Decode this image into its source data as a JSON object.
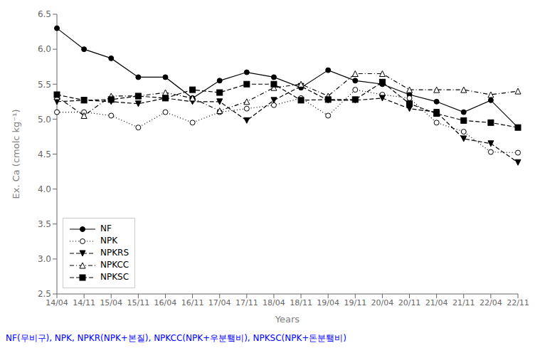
{
  "chart_data": {
    "type": "line",
    "xlabel": "Years",
    "ylabel": "Ex. Ca (cmolc kg⁻¹)",
    "categories": [
      "14/04",
      "14/11",
      "15/04",
      "15/11",
      "16/04",
      "16/11",
      "17/04",
      "17/11",
      "18/04",
      "18/11",
      "19/04",
      "19/11",
      "20/04",
      "20/11",
      "21/04",
      "21/11",
      "22/04",
      "22/11"
    ],
    "series": [
      {
        "name": "NF",
        "color": "#000000",
        "line_style": "solid",
        "marker": "circle",
        "values": [
          6.3,
          6.0,
          5.87,
          5.6,
          5.6,
          5.3,
          5.55,
          5.67,
          5.6,
          5.45,
          5.7,
          5.55,
          5.5,
          5.35,
          5.25,
          5.1,
          5.27,
          4.88
        ]
      },
      {
        "name": "NPK",
        "color": "#000000",
        "line_style": "dotted",
        "marker": "circle_open",
        "values": [
          5.1,
          5.1,
          5.05,
          4.88,
          5.1,
          4.95,
          5.1,
          5.15,
          5.2,
          5.3,
          5.05,
          5.42,
          5.35,
          5.3,
          4.95,
          4.82,
          4.53,
          4.52
        ]
      },
      {
        "name": "NPKRS",
        "color": "#000000",
        "line_style": "dashed",
        "marker": "triangle_down",
        "values": [
          5.25,
          5.27,
          5.25,
          5.22,
          5.3,
          5.25,
          5.25,
          4.98,
          5.27,
          5.47,
          5.27,
          5.27,
          5.3,
          5.15,
          5.1,
          4.72,
          4.65,
          4.38
        ]
      },
      {
        "name": "NPKCC",
        "color": "#000000",
        "line_style": "dashdot",
        "marker": "triangle_up_open",
        "values": [
          5.32,
          5.05,
          5.33,
          5.33,
          5.38,
          5.3,
          5.12,
          5.25,
          5.45,
          5.5,
          5.33,
          5.65,
          5.65,
          5.42,
          5.42,
          5.42,
          5.35,
          5.4
        ]
      },
      {
        "name": "NPKSC",
        "color": "#000000",
        "line_style": "dashed",
        "marker": "square",
        "values": [
          5.35,
          5.27,
          5.28,
          5.33,
          5.3,
          5.42,
          5.38,
          5.5,
          5.5,
          5.27,
          5.28,
          5.28,
          5.53,
          5.22,
          5.08,
          4.98,
          4.95,
          4.88
        ]
      }
    ],
    "ylim": [
      2.5,
      6.5
    ],
    "yticks": [
      2.5,
      {
        "value": 3,
        "label": "3.0"
      },
      3.5,
      {
        "value": 4,
        "label": "4.0"
      },
      4.5,
      {
        "value": 5,
        "label": "5.0"
      },
      5.5,
      {
        "value": 6,
        "label": "6.0"
      },
      6.5
    ],
    "legend": "lower left",
    "grid": false,
    "annotations": [
      {
        "text": "NF(무비구), NPK, NPKR(NPK+본질), NPKCC(NPK+우분퇰비), NPKSC(NPK+돈분퇰비)",
        "color": "#0000ff"
      }
    ]
  }
}
